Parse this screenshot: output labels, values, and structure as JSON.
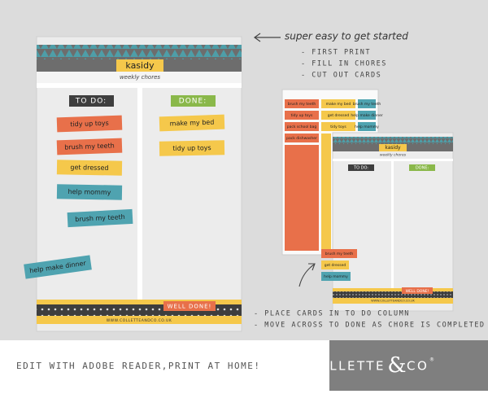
{
  "tagline": "super easy to get started",
  "steps": [
    "- FIRST PRINT",
    "- FILL IN CHORES",
    "- CUT OUT CARDS"
  ],
  "main_chart": {
    "name": "kasidy",
    "subtitle": "weekly chores",
    "todo": "TO DO:",
    "done": "DONE:",
    "todo_cards": [
      "tidy up toys",
      "brush my teeth",
      "get dressed",
      "help mommy",
      "brush my teeth",
      "help make dinner"
    ],
    "done_cards": [
      "make my bed",
      "tidy up toys"
    ],
    "banner": "WELL DONE!",
    "website": "WWW.COLLETTEANDCO.CO.UK"
  },
  "card_sheet": [
    "brush my teeth",
    "make my bed",
    "brush my teeth",
    "tidy up toys",
    "get dressed",
    "help make dinner",
    "pack school bag",
    "tidy toys",
    "help mommy",
    "pack dishwasher"
  ],
  "small_chart": {
    "name": "kasidy",
    "subtitle": "weekly chores",
    "todo": "TO DO:",
    "done": "DONE:",
    "cards": [
      "brush my teeth",
      "get dressed",
      "help mommy"
    ],
    "banner": "WELL DONE!",
    "website": "WWW.COLLETTEANDCO.CO.UK"
  },
  "notes": [
    "- PLACE CARDS IN TO DO COLUMN",
    "- MOVE ACROSS TO DONE AS CHORE IS COMPLETED"
  ],
  "footer": {
    "text": "EDIT WITH ADOBE READER,PRINT AT HOME!",
    "brand_left": "COLLETTE",
    "brand_amp": "&",
    "brand_right": "CO",
    "brand_mark": "®"
  }
}
